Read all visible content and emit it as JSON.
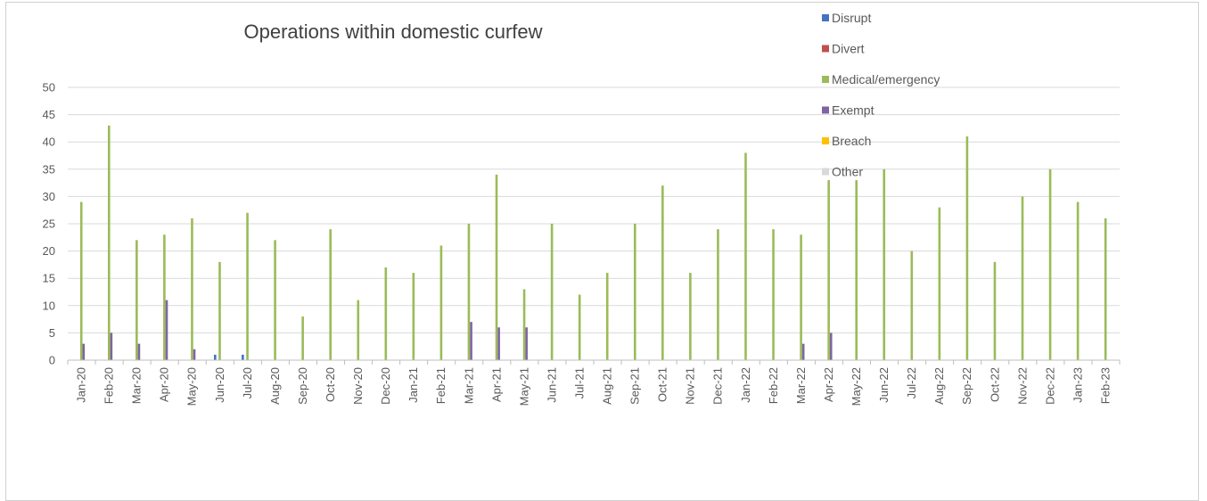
{
  "chart_data": {
    "type": "bar",
    "title": "Operations within domestic curfew",
    "xlabel": "",
    "ylabel": "",
    "ylim": [
      0,
      50
    ],
    "yticks": [
      0,
      5,
      10,
      15,
      20,
      25,
      30,
      35,
      40,
      45,
      50
    ],
    "grid": true,
    "legend_position": "top-right",
    "categories": [
      "Jan-20",
      "Feb-20",
      "Mar-20",
      "Apr-20",
      "May-20",
      "Jun-20",
      "Jul-20",
      "Aug-20",
      "Sep-20",
      "Oct-20",
      "Nov-20",
      "Dec-20",
      "Jan-21",
      "Feb-21",
      "Mar-21",
      "Apr-21",
      "May-21",
      "Jun-21",
      "Jul-21",
      "Aug-21",
      "Sep-21",
      "Oct-21",
      "Nov-21",
      "Dec-21",
      "Jan-22",
      "Feb-22",
      "Mar-22",
      "Apr-22",
      "May-22",
      "Jun-22",
      "Jul-22",
      "Aug-22",
      "Sep-22",
      "Oct-22",
      "Nov-22",
      "Dec-22",
      "Jan-23",
      "Feb-23"
    ],
    "series": [
      {
        "name": "Disrupt",
        "color": "#4472c4",
        "values": [
          0,
          0,
          0,
          0,
          0,
          1,
          1,
          0,
          0,
          0,
          0,
          0,
          0,
          0,
          0,
          0,
          0,
          0,
          0,
          0,
          0,
          0,
          0,
          0,
          0,
          0,
          0,
          0,
          0,
          0,
          0,
          0,
          0,
          0,
          0,
          0,
          0,
          0
        ]
      },
      {
        "name": "Divert",
        "color": "#c0504d",
        "values": [
          0,
          0,
          0,
          0,
          0,
          0,
          0,
          0,
          0,
          0,
          0,
          0,
          0,
          0,
          0,
          0,
          0,
          0,
          0,
          0,
          0,
          0,
          0,
          0,
          0,
          0,
          0,
          0,
          0,
          0,
          0,
          0,
          0,
          0,
          0,
          0,
          0,
          0
        ]
      },
      {
        "name": "Medical/emergency",
        "color": "#9bbb59",
        "values": [
          29,
          43,
          22,
          23,
          26,
          18,
          27,
          22,
          8,
          24,
          11,
          17,
          16,
          21,
          25,
          34,
          13,
          25,
          12,
          16,
          25,
          32,
          16,
          24,
          38,
          24,
          23,
          33,
          33,
          35,
          20,
          28,
          41,
          18,
          30,
          35,
          29,
          26
        ]
      },
      {
        "name": "Exempt",
        "color": "#8064a2",
        "values": [
          3,
          5,
          3,
          11,
          2,
          0,
          0,
          0,
          0,
          0,
          0,
          0,
          0,
          0,
          7,
          6,
          6,
          0,
          0,
          0,
          0,
          0,
          0,
          0,
          0,
          0,
          3,
          5,
          0,
          0,
          0,
          0,
          0,
          0,
          0,
          0,
          0,
          0
        ]
      },
      {
        "name": "Breach",
        "color": "#ffc000",
        "values": [
          0,
          0,
          0,
          0,
          0,
          0,
          0,
          0,
          0,
          0,
          0,
          0,
          0,
          0,
          0,
          0,
          0,
          0,
          0,
          0,
          0,
          0,
          0,
          0,
          0,
          0,
          0,
          0,
          0,
          0,
          0,
          0,
          0,
          0,
          0,
          0,
          0,
          0
        ]
      },
      {
        "name": "Other",
        "color": "#d9d9d9",
        "values": [
          0,
          0,
          0,
          0,
          0,
          0,
          0,
          0,
          0,
          0,
          0,
          0,
          0,
          0,
          0,
          0,
          0,
          0,
          0,
          0,
          0,
          0,
          0,
          0,
          0,
          0,
          0,
          0,
          0,
          0,
          0,
          0,
          0,
          0,
          0,
          0,
          0,
          0
        ]
      }
    ]
  }
}
